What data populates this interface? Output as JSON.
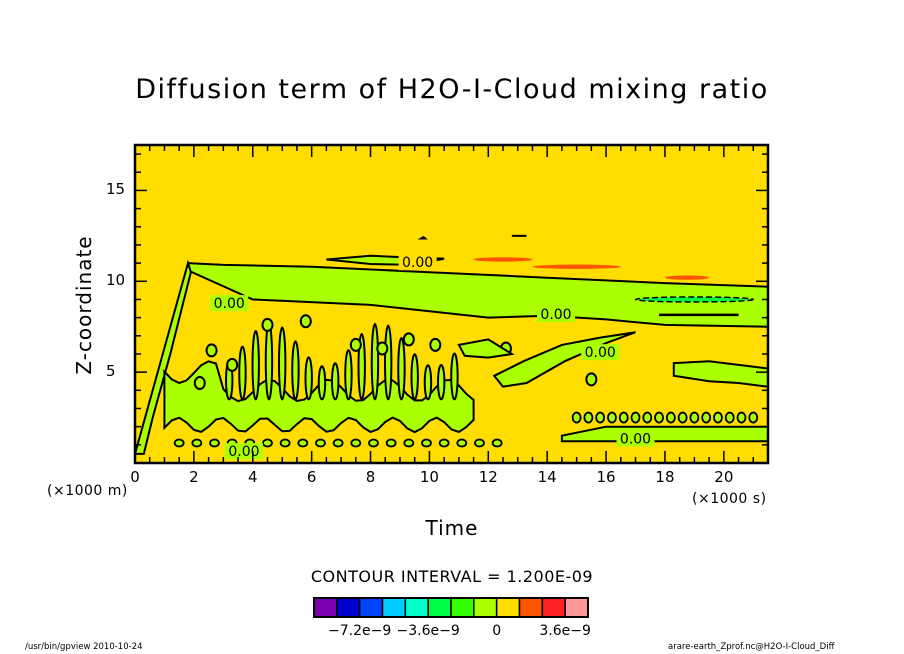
{
  "chart_data": {
    "type": "heatmap",
    "subtype": "filled-contour",
    "title": "Diffusion term of H2O-I-Cloud mixing ratio",
    "xlabel": "Time",
    "ylabel": "Z-coordinate",
    "x_unit_label": "(×1000 s)",
    "y_unit_label": "(×1000 m)",
    "xlim": [
      0,
      21.5
    ],
    "ylim": [
      0,
      17.5
    ],
    "x_ticks": [
      0,
      2,
      4,
      6,
      8,
      10,
      12,
      14,
      16,
      18,
      20
    ],
    "y_ticks": [
      5,
      10,
      15
    ],
    "x_minor_step": 0.5,
    "y_minor_step": 1,
    "background_level_color": "#ffdd00",
    "contour_label": "0.00",
    "contour_interval": "1.200E-09",
    "colorbar": {
      "colors": [
        "#7a00b0",
        "#0000cc",
        "#0044ff",
        "#00ccff",
        "#00ffcc",
        "#00ff44",
        "#33ff00",
        "#aaff00",
        "#ffdd00",
        "#ff5500",
        "#ff2222",
        "#ff9999"
      ],
      "tick_labels": [
        "-7.2e-9",
        "-3.6e-9",
        "0",
        "3.6e-9"
      ],
      "tick_values": [
        -7.2e-09,
        -3.6e-09,
        0,
        3.6e-09
      ]
    },
    "regions": {
      "negative_band": {
        "description": "Light-green (-1.2e-9 to 0) region: cloud layer from z≈1 to ≈11 km starting t≈1.8 ks, tapering to z≈7.5-9.8 km by t≈21.5 ks, with vertical convective streaks between t≈1 and ≈11 ks",
        "upper_boundary": [
          [
            1.8,
            11.0
          ],
          [
            3,
            10.9
          ],
          [
            6,
            10.8
          ],
          [
            10,
            10.5
          ],
          [
            14,
            10.2
          ],
          [
            18,
            9.9
          ],
          [
            21.5,
            9.7
          ]
        ],
        "lower_boundary": [
          [
            1.8,
            10.6
          ],
          [
            4,
            9.0
          ],
          [
            8,
            8.7
          ],
          [
            12,
            8.0
          ],
          [
            14,
            8.1
          ],
          [
            16,
            7.9
          ],
          [
            18,
            7.6
          ],
          [
            21.5,
            7.5
          ]
        ]
      },
      "strong_negative_streak": {
        "color_index": 5,
        "x_range": [
          17,
          21
        ],
        "z": 9.0
      },
      "positive_patches": [
        {
          "x_range": [
            11.5,
            13.5
          ],
          "z": 11.2,
          "color_index": 9
        },
        {
          "x_range": [
            13.5,
            16.5
          ],
          "z": 10.8,
          "color_index": 9
        },
        {
          "x_range": [
            18.0,
            19.5
          ],
          "z": 10.2,
          "color_index": 9
        }
      ],
      "low_level_band": {
        "x_range": [
          14.5,
          21.5
        ],
        "z_range": [
          1.2,
          2.0
        ]
      }
    }
  },
  "title": "Diffusion term of H2O-I-Cloud mixing ratio",
  "axes": {
    "xlabel": "Time",
    "ylabel": "Z-coordinate",
    "x_unit": "(×1000 s)",
    "y_unit": "(×1000 m)",
    "x_tick_labels": [
      "0",
      "2",
      "4",
      "6",
      "8",
      "10",
      "12",
      "14",
      "16",
      "18",
      "20"
    ],
    "y_tick_labels": [
      "5",
      "10",
      "15"
    ]
  },
  "contour_interval_text": "CONTOUR INTERVAL = 1.200E-09",
  "colorbar_labels": [
    "−7.2e−9",
    "−3.6e−9",
    "0",
    "3.6e−9"
  ],
  "contour_labels": [
    "0.00",
    "0.00",
    "0.00",
    "0.00",
    "0.00",
    "0.00"
  ],
  "footer": {
    "left": "/usr/bin/gpview   2010-10-24",
    "right": "arare-earth_Zprof.nc@H2O-I-Cloud_Diff"
  }
}
